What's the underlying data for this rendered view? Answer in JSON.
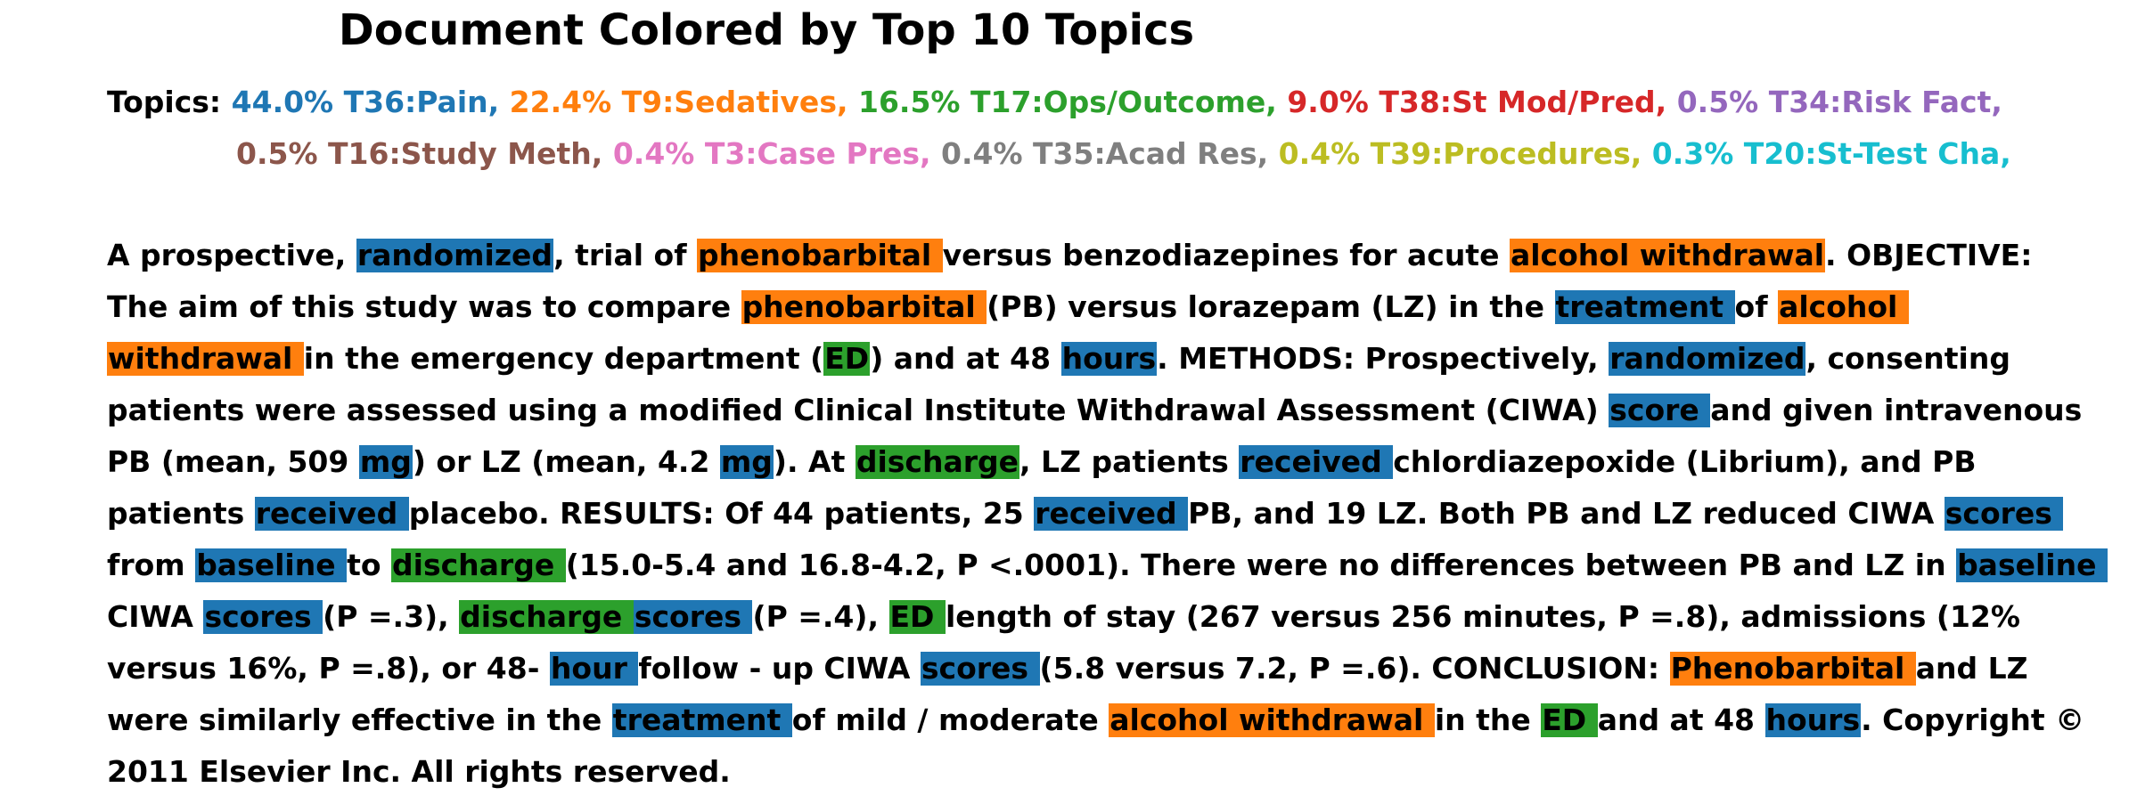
{
  "title": "Document Colored by Top 10 Topics",
  "colors": {
    "T36": "#1f77b4",
    "T9": "#ff7f0e",
    "T17": "#2ca02c",
    "T38": "#d62728",
    "T34": "#9467bd",
    "T16": "#8c564b",
    "T3": "#e377c2",
    "T35": "#7f7f7f",
    "T39": "#bcbd22",
    "T20": "#17becf"
  },
  "legend": {
    "label": "Topics:",
    "rows": [
      [
        {
          "text": "44.0% T36:Pain,",
          "topic": "T36"
        },
        {
          "text": "22.4% T9:Sedatives,",
          "topic": "T9"
        },
        {
          "text": "16.5% T17:Ops/Outcome,",
          "topic": "T17"
        },
        {
          "text": "9.0% T38:St Mod/Pred,",
          "topic": "T38"
        },
        {
          "text": "0.5% T34:Risk Fact,",
          "topic": "T34"
        }
      ],
      [
        {
          "text": "0.5% T16:Study Meth,",
          "topic": "T16"
        },
        {
          "text": "0.4% T3:Case Pres,",
          "topic": "T3"
        },
        {
          "text": "0.4% T35:Acad Res,",
          "topic": "T35"
        },
        {
          "text": "0.4% T39:Procedures,",
          "topic": "T39"
        },
        {
          "text": "0.3% T20:St-Test Cha,",
          "topic": "T20"
        }
      ]
    ]
  },
  "document": {
    "lines": [
      [
        {
          "t": "A prospective, "
        },
        {
          "t": "randomized",
          "topic": "T36"
        },
        {
          "t": ", trial of "
        },
        {
          "t": "phenobarbital ",
          "topic": "T9"
        },
        {
          "t": "versus benzodiazepines for acute "
        },
        {
          "t": "alcohol withdrawal",
          "topic": "T9"
        },
        {
          "t": ". OBJECTIVE:"
        }
      ],
      [
        {
          "t": "The aim of this study was to compare "
        },
        {
          "t": "phenobarbital ",
          "topic": "T9"
        },
        {
          "t": "(PB) versus lorazepam (LZ) in the "
        },
        {
          "t": "treatment ",
          "topic": "T36"
        },
        {
          "t": "of "
        },
        {
          "t": "alcohol ",
          "topic": "T9"
        }
      ],
      [
        {
          "t": "withdrawal ",
          "topic": "T9"
        },
        {
          "t": "in the emergency department ("
        },
        {
          "t": "ED",
          "topic": "T17"
        },
        {
          "t": ") and at 48 "
        },
        {
          "t": "hours",
          "topic": "T36"
        },
        {
          "t": ". METHODS: Prospectively, "
        },
        {
          "t": "randomized",
          "topic": "T36"
        },
        {
          "t": ", consenting"
        }
      ],
      [
        {
          "t": "patients were assessed using a modified Clinical Institute Withdrawal Assessment (CIWA) "
        },
        {
          "t": "score ",
          "topic": "T36"
        },
        {
          "t": "and given intravenous"
        }
      ],
      [
        {
          "t": "PB (mean, 509 "
        },
        {
          "t": "mg",
          "topic": "T36"
        },
        {
          "t": ") or LZ (mean, 4.2 "
        },
        {
          "t": "mg",
          "topic": "T36"
        },
        {
          "t": "). At "
        },
        {
          "t": "discharge",
          "topic": "T17"
        },
        {
          "t": ", LZ patients "
        },
        {
          "t": "received ",
          "topic": "T36"
        },
        {
          "t": "chlordiazepoxide (Librium), and PB"
        }
      ],
      [
        {
          "t": "patients "
        },
        {
          "t": "received ",
          "topic": "T36"
        },
        {
          "t": "placebo. RESULTS: Of 44 patients, 25 "
        },
        {
          "t": "received ",
          "topic": "T36"
        },
        {
          "t": "PB, and 19 LZ. Both PB and LZ reduced CIWA "
        },
        {
          "t": "scores ",
          "topic": "T36"
        }
      ],
      [
        {
          "t": "from "
        },
        {
          "t": "baseline ",
          "topic": "T36"
        },
        {
          "t": "to "
        },
        {
          "t": "discharge ",
          "topic": "T17"
        },
        {
          "t": "(15.0-5.4 and 16.8-4.2, P <.0001). There were no differences between PB and LZ in "
        },
        {
          "t": "baseline ",
          "topic": "T36"
        }
      ],
      [
        {
          "t": "CIWA "
        },
        {
          "t": "scores ",
          "topic": "T36"
        },
        {
          "t": "(P =.3), "
        },
        {
          "t": "discharge ",
          "topic": "T17"
        },
        {
          "t": "scores ",
          "topic": "T36"
        },
        {
          "t": "(P =.4), "
        },
        {
          "t": "ED ",
          "topic": "T17"
        },
        {
          "t": "length of stay (267 versus 256 minutes, P =.8), admissions (12%"
        }
      ],
      [
        {
          "t": "versus 16%, P =.8), or 48- "
        },
        {
          "t": "hour ",
          "topic": "T36"
        },
        {
          "t": "follow - up CIWA "
        },
        {
          "t": "scores ",
          "topic": "T36"
        },
        {
          "t": "(5.8 versus 7.2, P =.6). CONCLUSION: "
        },
        {
          "t": "Phenobarbital ",
          "topic": "T9"
        },
        {
          "t": "and LZ"
        }
      ],
      [
        {
          "t": "were similarly effective in the "
        },
        {
          "t": "treatment ",
          "topic": "T36"
        },
        {
          "t": "of mild / moderate "
        },
        {
          "t": "alcohol withdrawal ",
          "topic": "T9"
        },
        {
          "t": "in the "
        },
        {
          "t": "ED ",
          "topic": "T17"
        },
        {
          "t": "and at 48 "
        },
        {
          "t": "hours",
          "topic": "T36"
        },
        {
          "t": ". Copyright ©"
        }
      ],
      [
        {
          "t": "2011 Elsevier Inc. All rights reserved."
        }
      ]
    ]
  }
}
